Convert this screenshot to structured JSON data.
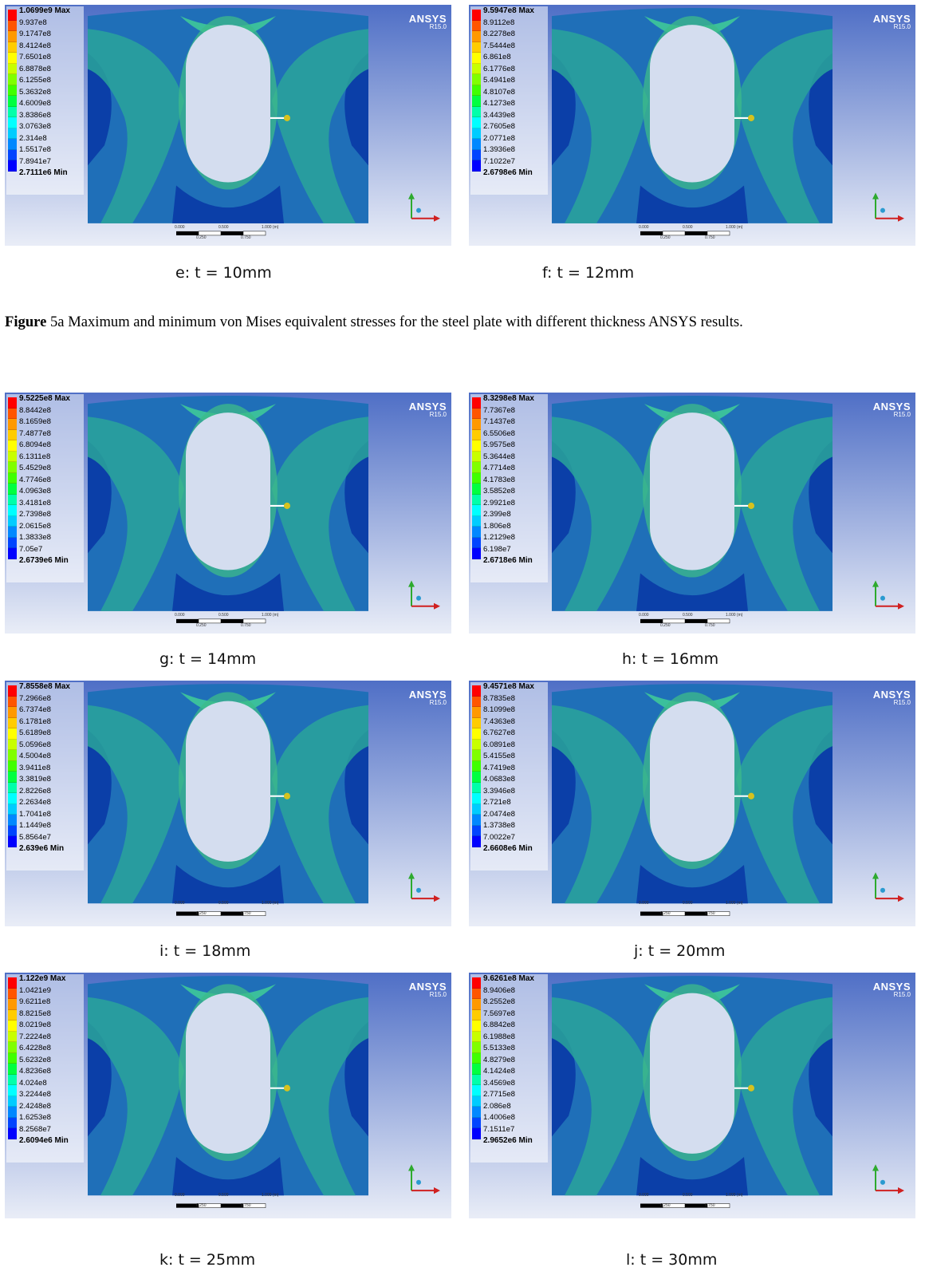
{
  "brand": {
    "name": "ANSYS",
    "version": "R15.0"
  },
  "scale_labels": [
    "0.000",
    "0.500",
    "1.000 (m)",
    "0.250",
    "0.750"
  ],
  "legend_colors": [
    "#ff0000",
    "#ff5500",
    "#ff9900",
    "#ffcc00",
    "#ffff00",
    "#c8ff00",
    "#80ff00",
    "#40ff00",
    "#00ff40",
    "#00ffaa",
    "#00ffff",
    "#00ccff",
    "#0088ff",
    "#0044ff",
    "#0000ff"
  ],
  "figure_caption": {
    "label": "Figure",
    "text": " 5a Maximum and minimum von Mises equivalent stresses for the steel plate with different thickness ANSYS results."
  },
  "panels": [
    {
      "caption": "e: t = 10mm",
      "legend": [
        "1.0699e9 Max",
        "9.937e8",
        "9.1747e8",
        "8.4124e8",
        "7.6501e8",
        "6.8878e8",
        "6.1255e8",
        "5.3632e8",
        "4.6009e8",
        "3.8386e8",
        "3.0763e8",
        "2.314e8",
        "1.5517e8",
        "7.8941e7",
        "2.7111e6 Min"
      ]
    },
    {
      "caption": "f: t = 12mm",
      "legend": [
        "9.5947e8 Max",
        "8.9112e8",
        "8.2278e8",
        "7.5444e8",
        "6.861e8",
        "6.1776e8",
        "5.4941e8",
        "4.8107e8",
        "4.1273e8",
        "3.4439e8",
        "2.7605e8",
        "2.0771e8",
        "1.3936e8",
        "7.1022e7",
        "2.6798e6 Min"
      ]
    },
    {
      "caption": "g: t = 14mm",
      "legend": [
        "9.5225e8 Max",
        "8.8442e8",
        "8.1659e8",
        "7.4877e8",
        "6.8094e8",
        "6.1311e8",
        "5.4529e8",
        "4.7746e8",
        "4.0963e8",
        "3.4181e8",
        "2.7398e8",
        "2.0615e8",
        "1.3833e8",
        "7.05e7",
        "2.6739e6 Min"
      ]
    },
    {
      "caption": "h: t = 16mm",
      "legend": [
        "8.3298e8 Max",
        "7.7367e8",
        "7.1437e8",
        "6.5506e8",
        "5.9575e8",
        "5.3644e8",
        "4.7714e8",
        "4.1783e8",
        "3.5852e8",
        "2.9921e8",
        "2.399e8",
        "1.806e8",
        "1.2129e8",
        "6.198e7",
        "2.6718e6 Min"
      ]
    },
    {
      "caption": "i: t = 18mm",
      "legend": [
        "7.8558e8 Max",
        "7.2966e8",
        "6.7374e8",
        "6.1781e8",
        "5.6189e8",
        "5.0596e8",
        "4.5004e8",
        "3.9411e8",
        "3.3819e8",
        "2.8226e8",
        "2.2634e8",
        "1.7041e8",
        "1.1449e8",
        "5.8564e7",
        "2.639e6 Min"
      ]
    },
    {
      "caption": "j: t = 20mm",
      "legend": [
        "9.4571e8 Max",
        "8.7835e8",
        "8.1099e8",
        "7.4363e8",
        "6.7627e8",
        "6.0891e8",
        "5.4155e8",
        "4.7419e8",
        "4.0683e8",
        "3.3946e8",
        "2.721e8",
        "2.0474e8",
        "1.3738e8",
        "7.0022e7",
        "2.6608e6 Min"
      ]
    },
    {
      "caption": "k: t = 25mm",
      "legend": [
        "1.122e9 Max",
        "1.0421e9",
        "9.6211e8",
        "8.8215e8",
        "8.0219e8",
        "7.2224e8",
        "6.4228e8",
        "5.6232e8",
        "4.8236e8",
        "4.024e8",
        "3.2244e8",
        "2.4248e8",
        "1.6253e8",
        "8.2568e7",
        "2.6094e6 Min"
      ]
    },
    {
      "caption": "l: t = 30mm",
      "legend": [
        "9.6261e8 Max",
        "8.9406e8",
        "8.2552e8",
        "7.5697e8",
        "6.8842e8",
        "6.1988e8",
        "5.5133e8",
        "4.8279e8",
        "4.1424e8",
        "3.4569e8",
        "2.7715e8",
        "2.086e8",
        "1.4006e8",
        "7.1511e7",
        "2.9652e6 Min"
      ]
    }
  ]
}
